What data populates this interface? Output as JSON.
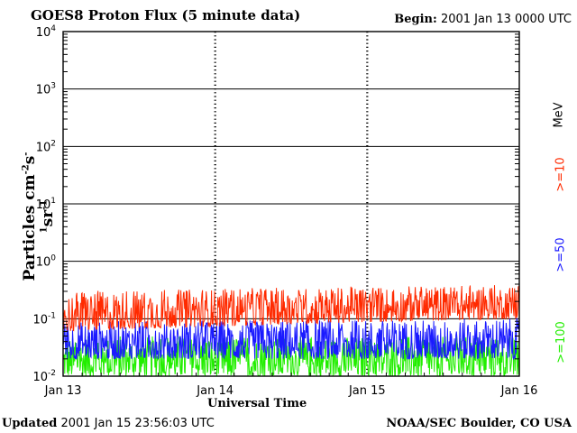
{
  "header": {
    "title": "GOES8 Proton Flux (5 minute data)",
    "begin_label": "Begin:",
    "begin_value": "2001 Jan 13 0000 UTC"
  },
  "footer": {
    "updated_label": "Updated",
    "updated_value": "2001 Jan 15 23:56:03 UTC",
    "credit": "NOAA/SEC Boulder, CO USA"
  },
  "colors": {
    "p10": "#ff2a00",
    "p50": "#1a1aff",
    "p100": "#22ee00",
    "grid": "#000000"
  },
  "chart_data": {
    "type": "line",
    "title": "GOES8 Proton Flux (5 minute data)",
    "xlabel": "Universal Time",
    "ylabel_main": "Particles cm",
    "ylabel_exps": [
      "-2",
      "-1",
      "-1"
    ],
    "yscale": "log",
    "ylim": [
      0.01,
      10000
    ],
    "xlim": [
      "2001-01-13 00:00",
      "2001-01-16 00:00"
    ],
    "x_ticks": [
      "Jan 13",
      "Jan 14",
      "Jan 15",
      "Jan 16"
    ],
    "y_ticks": [
      {
        "base": "10",
        "exp": "-2"
      },
      {
        "base": "10",
        "exp": "-1"
      },
      {
        "base": "10",
        "exp": "0"
      },
      {
        "base": "10",
        "exp": "1"
      },
      {
        "base": "10",
        "exp": "2"
      },
      {
        "base": "10",
        "exp": "3"
      },
      {
        "base": "10",
        "exp": "4"
      }
    ],
    "grid": true,
    "legend_unit": "MeV",
    "series": [
      {
        "name": ">=10",
        "color": "#ff2a00",
        "typical_range": [
          0.06,
          0.3
        ],
        "trend_end": [
          0.1,
          0.4
        ]
      },
      {
        "name": ">=50",
        "color": "#1a1aff",
        "typical_range": [
          0.02,
          0.09
        ],
        "trend_end": [
          0.02,
          0.1
        ]
      },
      {
        "name": ">=100",
        "color": "#22ee00",
        "typical_range": [
          0.01,
          0.05
        ],
        "trend_end": [
          0.01,
          0.05
        ]
      }
    ]
  }
}
